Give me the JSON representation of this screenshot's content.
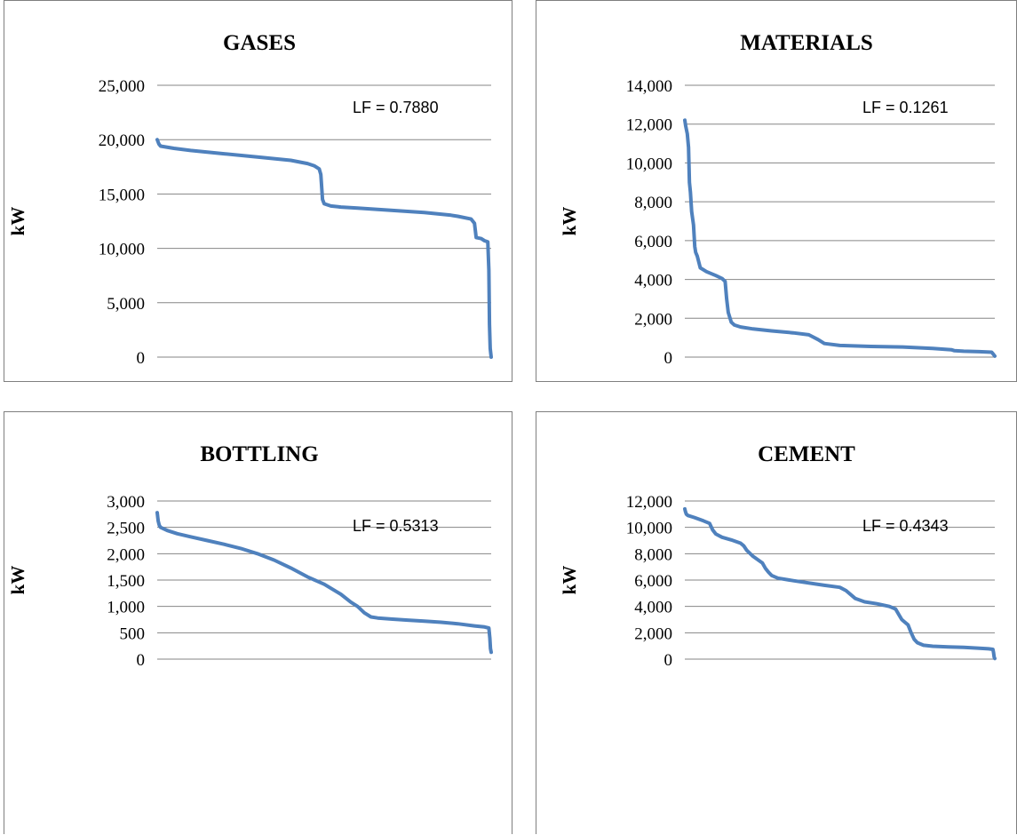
{
  "series_color": "#4f81bd",
  "gridline_color": "#868686",
  "chart_data": [
    {
      "type": "line",
      "title": "GASES",
      "ylabel": "kW",
      "annotation": "LF = 0.7880",
      "ylim": [
        0,
        25000
      ],
      "yticks": [
        "0",
        "5,000",
        "10,000",
        "15,000",
        "20,000",
        "25,000"
      ],
      "grid": "horizontal",
      "x": [
        0,
        0.5,
        1,
        5,
        10,
        20,
        30,
        40,
        45,
        47,
        48.5,
        49,
        49.5,
        50,
        52,
        55,
        60,
        70,
        80,
        88,
        90,
        94,
        95,
        95.5,
        97,
        98,
        99,
        99.3,
        99.5,
        99.7,
        100
      ],
      "values": [
        20000,
        19600,
        19400,
        19200,
        19000,
        18700,
        18400,
        18100,
        17800,
        17600,
        17300,
        16800,
        14500,
        14100,
        13900,
        13800,
        13700,
        13500,
        13300,
        13050,
        12950,
        12700,
        12300,
        11000,
        10900,
        10700,
        10600,
        8000,
        3000,
        800,
        0
      ]
    },
    {
      "type": "line",
      "title": "MATERIALS",
      "ylabel": "kW",
      "annotation": "LF = 0.1261",
      "ylim": [
        0,
        14000
      ],
      "yticks": [
        "0",
        "2,000",
        "4,000",
        "6,000",
        "8,000",
        "10,000",
        "12,000",
        "14,000"
      ],
      "grid": "horizontal",
      "x": [
        0,
        0.3,
        0.8,
        1.2,
        1.5,
        1.8,
        2.2,
        2.8,
        3.2,
        3.5,
        4,
        5,
        7,
        10,
        12,
        13,
        13.5,
        14,
        15,
        16,
        18,
        22,
        28,
        35,
        40,
        43,
        45,
        50,
        60,
        70,
        80,
        86,
        87,
        90,
        95,
        99,
        99.5,
        100
      ],
      "values": [
        12200,
        11900,
        11500,
        10800,
        9000,
        8500,
        7500,
        6800,
        5700,
        5400,
        5200,
        4600,
        4400,
        4200,
        4050,
        3900,
        3000,
        2300,
        1800,
        1650,
        1550,
        1450,
        1350,
        1250,
        1150,
        900,
        700,
        600,
        550,
        520,
        450,
        380,
        330,
        300,
        280,
        250,
        150,
        50
      ]
    },
    {
      "type": "line",
      "title": "BOTTLING",
      "ylabel": "kW",
      "annotation": "LF  = 0.5313",
      "ylim": [
        0,
        3000
      ],
      "yticks": [
        "0",
        "500",
        "1,000",
        "1,500",
        "2,000",
        "2,500",
        "3,000"
      ],
      "grid": "horizontal",
      "x": [
        0,
        0.3,
        0.6,
        1,
        3,
        6,
        10,
        15,
        20,
        25,
        30,
        35,
        40,
        45,
        50,
        55,
        58,
        60,
        62,
        64,
        66,
        70,
        75,
        80,
        85,
        90,
        95,
        98,
        99.3,
        99.6,
        99.8,
        100
      ],
      "values": [
        2780,
        2620,
        2540,
        2500,
        2440,
        2380,
        2320,
        2250,
        2180,
        2100,
        2000,
        1880,
        1730,
        1560,
        1420,
        1230,
        1080,
        1000,
        880,
        800,
        780,
        760,
        740,
        720,
        700,
        670,
        630,
        610,
        590,
        400,
        200,
        130
      ]
    },
    {
      "type": "line",
      "title": "CEMENT",
      "ylabel": "kW",
      "annotation": "LF  = 0.4343",
      "ylim": [
        0,
        12000
      ],
      "yticks": [
        "0",
        "2,000",
        "4,000",
        "6,000",
        "8,000",
        "10,000",
        "12,000"
      ],
      "grid": "horizontal",
      "x": [
        0,
        0.2,
        0.5,
        1,
        3,
        6,
        8,
        9,
        10,
        12,
        15,
        18,
        19,
        20,
        22,
        25,
        26,
        27,
        28,
        30,
        35,
        45,
        50,
        52,
        54,
        55,
        58,
        62,
        66,
        68,
        69,
        70,
        71,
        72,
        73,
        74,
        75,
        77,
        80,
        85,
        90,
        95,
        98,
        99.4,
        99.6,
        99.8,
        100
      ],
      "values": [
        11400,
        11200,
        11000,
        10900,
        10750,
        10500,
        10300,
        9800,
        9500,
        9250,
        9050,
        8800,
        8600,
        8250,
        7800,
        7300,
        6900,
        6600,
        6350,
        6150,
        5950,
        5600,
        5450,
        5200,
        4800,
        4600,
        4350,
        4200,
        4000,
        3800,
        3400,
        3000,
        2800,
        2600,
        2000,
        1500,
        1250,
        1050,
        980,
        930,
        890,
        830,
        780,
        740,
        500,
        150,
        50
      ]
    }
  ]
}
